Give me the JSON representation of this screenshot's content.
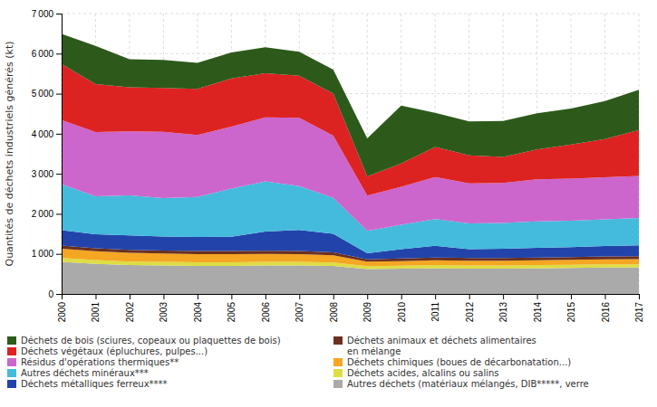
{
  "chart_data": {
    "type": "area",
    "stacked": true,
    "grid": true,
    "legend": "bottom",
    "ylabel": "Quantités de déchets industriels générés (kt)",
    "x": [
      2000,
      2001,
      2002,
      2003,
      2004,
      2005,
      2006,
      2007,
      2008,
      2009,
      2010,
      2011,
      2012,
      2013,
      2014,
      2015,
      2016,
      2017
    ],
    "xlim": [
      2000,
      2017
    ],
    "xticks": [
      2000,
      2001,
      2002,
      2003,
      2004,
      2005,
      2006,
      2007,
      2008,
      2009,
      2010,
      2011,
      2012,
      2013,
      2014,
      2015,
      2016,
      2017
    ],
    "ylim": [
      0,
      7000
    ],
    "yticks": [
      0,
      {
        "value": 1000,
        "label": "1 000"
      },
      {
        "value": 2000,
        "label": "2 000"
      },
      {
        "value": 3000,
        "label": "3 000"
      },
      {
        "value": 4000,
        "label": "4 000"
      },
      {
        "value": 5000,
        "label": "5 000"
      },
      {
        "value": 6000,
        "label": "6 000"
      },
      {
        "value": 7000,
        "label": "7 000"
      }
    ],
    "series": [
      {
        "name": "Autres déchets (matériaux mélangés, DIB*****, verre",
        "color": "#aaaaaa",
        "values": [
          800,
          750,
          720,
          710,
          700,
          700,
          710,
          710,
          700,
          620,
          630,
          640,
          630,
          630,
          640,
          650,
          660,
          660
        ]
      },
      {
        "name": "Déchets acides, alcalins ou salins",
        "color": "#dddd44",
        "values": [
          100,
          95,
          90,
          90,
          90,
          90,
          90,
          90,
          85,
          75,
          75,
          80,
          80,
          80,
          80,
          80,
          80,
          80
        ]
      },
      {
        "name": "Déchets chimiques (boues de décarbonatation...)",
        "color": "#f5a623",
        "values": [
          230,
          220,
          215,
          210,
          205,
          205,
          200,
          195,
          180,
          110,
          115,
          120,
          120,
          120,
          120,
          120,
          125,
          130
        ]
      },
      {
        "name": "Déchets animaux et déchets alimentaires\nen mélange",
        "color": "#6b3020",
        "values": [
          80,
          75,
          75,
          75,
          75,
          75,
          80,
          80,
          75,
          60,
          65,
          70,
          70,
          70,
          70,
          70,
          70,
          75
        ]
      },
      {
        "name": "Déchets métalliques ferreux****",
        "color": "#2244aa",
        "values": [
          380,
          350,
          360,
          350,
          350,
          360,
          480,
          520,
          460,
          150,
          230,
          290,
          220,
          230,
          240,
          250,
          260,
          270
        ]
      },
      {
        "name": "Autres déchets minéraux***",
        "color": "#44bbdd",
        "values": [
          1150,
          950,
          1000,
          960,
          1000,
          1200,
          1250,
          1100,
          900,
          560,
          610,
          670,
          640,
          640,
          660,
          660,
          670,
          680
        ]
      },
      {
        "name": "Résidus d'opérations thermiques**",
        "color": "#cc66cc",
        "values": [
          1600,
          1600,
          1600,
          1650,
          1550,
          1550,
          1600,
          1700,
          1550,
          880,
          950,
          1050,
          1000,
          1000,
          1050,
          1050,
          1050,
          1050
        ]
      },
      {
        "name": "Déchets végétaux (épluchures, pulpes...)",
        "color": "#dd2222",
        "values": [
          1400,
          1200,
          1100,
          1100,
          1150,
          1200,
          1100,
          1050,
          1050,
          480,
          580,
          750,
          700,
          650,
          750,
          850,
          950,
          1150
        ]
      },
      {
        "name": "Déchets de bois (sciures, copeaux ou plaquettes de bois)",
        "color": "#2d5a1b",
        "values": [
          750,
          950,
          700,
          700,
          650,
          650,
          650,
          600,
          600,
          950,
          1450,
          850,
          850,
          900,
          900,
          900,
          950,
          1000
        ]
      }
    ]
  }
}
